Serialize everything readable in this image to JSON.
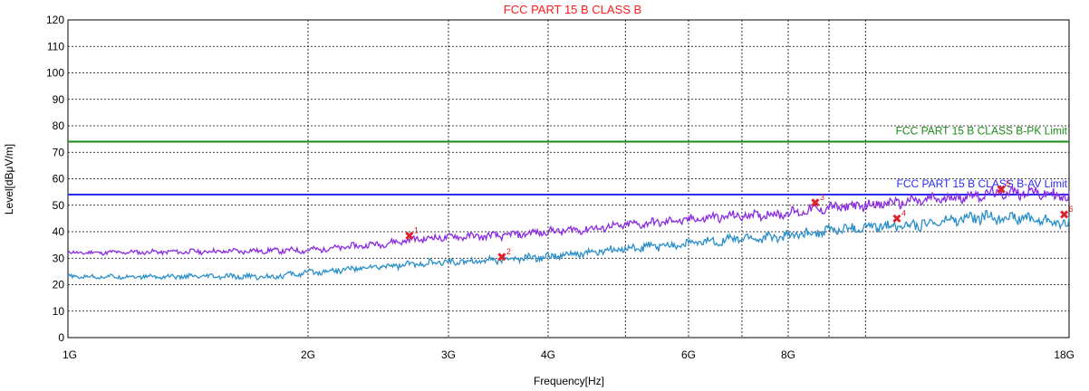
{
  "chart_data": {
    "type": "line",
    "title": "FCC PART 15 B CLASS B",
    "xlabel": "Frequency[Hz]",
    "ylabel": "Level[dBμV/m]",
    "x_scale": "log",
    "xlim": [
      1000000000,
      18000000000
    ],
    "ylim": [
      0,
      120
    ],
    "grid": true,
    "x_ticks": [
      {
        "value": 1000000000,
        "label": "1G"
      },
      {
        "value": 2000000000,
        "label": "2G"
      },
      {
        "value": 3000000000,
        "label": "3G"
      },
      {
        "value": 4000000000,
        "label": "4G"
      },
      {
        "value": 6000000000,
        "label": "6G"
      },
      {
        "value": 8000000000,
        "label": "8G"
      },
      {
        "value": 18000000000,
        "label": "18G"
      }
    ],
    "x_gridlines_extra": [
      5000000000,
      7000000000,
      9000000000,
      10000000000
    ],
    "y_ticks": [
      0,
      10,
      20,
      30,
      40,
      50,
      60,
      70,
      80,
      90,
      100,
      110,
      120
    ],
    "limits": [
      {
        "name": "FCC PART 15 B CLASS B-PK Limit",
        "value": 74,
        "color": "#1a8a1a"
      },
      {
        "name": "FCC PART 15 B CLASS B-AV Limit",
        "value": 54,
        "color": "#2b2bef"
      }
    ],
    "series": [
      {
        "color": "#8a2be2",
        "x": [
          1000000000,
          1500000000,
          2000000000,
          2500000000,
          2700000000,
          3000000000,
          3500000000,
          4000000000,
          4500000000,
          5000000000,
          5500000000,
          6000000000,
          6500000000,
          7000000000,
          7500000000,
          8000000000,
          8500000000,
          9000000000,
          10000000000,
          11000000000,
          12000000000,
          13000000000,
          14000000000,
          15000000000,
          16000000000,
          17000000000,
          18000000000
        ],
        "values": [
          32,
          32.5,
          33,
          35.5,
          37,
          38,
          38.5,
          40,
          41,
          42.5,
          43.5,
          44.5,
          45.5,
          46,
          46.5,
          47,
          48,
          49,
          50,
          51,
          52,
          53,
          54,
          54.5,
          55,
          54,
          53
        ]
      },
      {
        "color": "#2a8fc9",
        "x": [
          1000000000,
          1500000000,
          1800000000,
          2000000000,
          2500000000,
          3000000000,
          3500000000,
          4000000000,
          4500000000,
          5000000000,
          5500000000,
          6000000000,
          6500000000,
          7000000000,
          7500000000,
          8000000000,
          8500000000,
          9000000000,
          10000000000,
          11000000000,
          12000000000,
          13000000000,
          14000000000,
          15000000000,
          16000000000,
          17000000000,
          18000000000
        ],
        "values": [
          23,
          23,
          23,
          24.5,
          27,
          28.5,
          29.5,
          30.5,
          32,
          33.5,
          34.5,
          35.5,
          36.5,
          37.5,
          37.5,
          38.5,
          39.5,
          40.5,
          41.5,
          42.5,
          43,
          44.5,
          45.5,
          45.5,
          45,
          44,
          43
        ]
      }
    ],
    "markers": [
      {
        "label": "1",
        "x": 2680000000,
        "y": 38.5,
        "color": "#e0202a"
      },
      {
        "label": "2",
        "x": 3500000000,
        "y": 30.5,
        "color": "#e0202a"
      },
      {
        "label": "3",
        "x": 8650000000,
        "y": 51,
        "color": "#e0202a"
      },
      {
        "label": "4",
        "x": 10950000000,
        "y": 45,
        "color": "#e0202a"
      },
      {
        "label": "5",
        "x": 14800000000,
        "y": 56,
        "color": "#e0202a"
      },
      {
        "label": "6",
        "x": 17750000000,
        "y": 46.5,
        "color": "#e0202a"
      }
    ]
  }
}
